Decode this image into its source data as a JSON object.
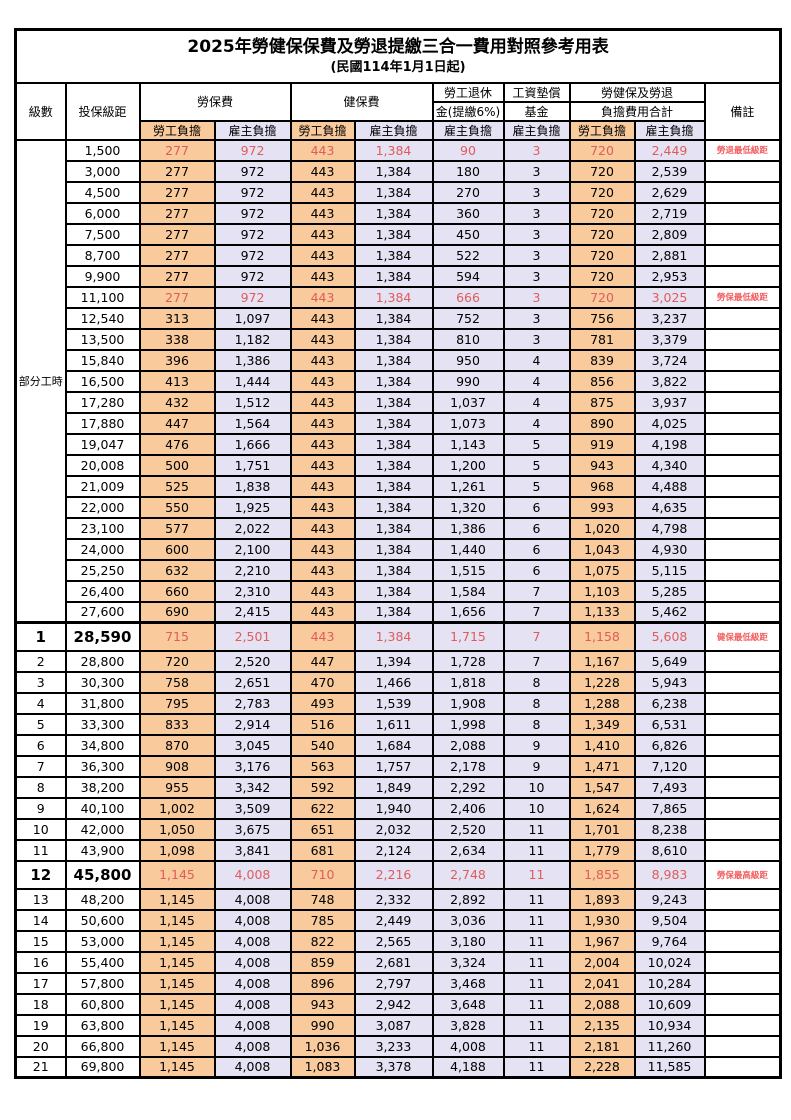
{
  "title": "2025年勞健保保費及勞退提繳三合一費用對照參考用表",
  "subtitle": "(民國114年1月1日起)",
  "colors": {
    "employee_bg": "#F8CA9C",
    "employer_bg": "#E4E2F3",
    "highlight_red": "#E05C5C",
    "note_red": "#F25F5F"
  },
  "header": {
    "level": "級數",
    "bracket": "投保級距",
    "labor_fee": "勞保費",
    "health_fee": "健保費",
    "pension_line1": "勞工退休",
    "pension_line2": "金(提繳6%)",
    "fund_line1": "工資墊償",
    "fund_line2": "基金",
    "total_line1": "勞健保及勞退",
    "total_line2": "負擔費用合計",
    "employee": "勞工負擔",
    "employer": "雇主負擔",
    "note": "備註"
  },
  "part_time_label": "部分工時",
  "rows": [
    {
      "bracket": "1,500",
      "li_emp": "277",
      "li_er": "972",
      "hi_emp": "443",
      "hi_er": "1,384",
      "pension": "90",
      "fund": "3",
      "tot_emp": "720",
      "tot_er": "2,449",
      "note": "勞退最低級距",
      "red": true
    },
    {
      "bracket": "3,000",
      "li_emp": "277",
      "li_er": "972",
      "hi_emp": "443",
      "hi_er": "1,384",
      "pension": "180",
      "fund": "3",
      "tot_emp": "720",
      "tot_er": "2,539"
    },
    {
      "bracket": "4,500",
      "li_emp": "277",
      "li_er": "972",
      "hi_emp": "443",
      "hi_er": "1,384",
      "pension": "270",
      "fund": "3",
      "tot_emp": "720",
      "tot_er": "2,629"
    },
    {
      "bracket": "6,000",
      "li_emp": "277",
      "li_er": "972",
      "hi_emp": "443",
      "hi_er": "1,384",
      "pension": "360",
      "fund": "3",
      "tot_emp": "720",
      "tot_er": "2,719"
    },
    {
      "bracket": "7,500",
      "li_emp": "277",
      "li_er": "972",
      "hi_emp": "443",
      "hi_er": "1,384",
      "pension": "450",
      "fund": "3",
      "tot_emp": "720",
      "tot_er": "2,809"
    },
    {
      "bracket": "8,700",
      "li_emp": "277",
      "li_er": "972",
      "hi_emp": "443",
      "hi_er": "1,384",
      "pension": "522",
      "fund": "3",
      "tot_emp": "720",
      "tot_er": "2,881"
    },
    {
      "bracket": "9,900",
      "li_emp": "277",
      "li_er": "972",
      "hi_emp": "443",
      "hi_er": "1,384",
      "pension": "594",
      "fund": "3",
      "tot_emp": "720",
      "tot_er": "2,953"
    },
    {
      "bracket": "11,100",
      "li_emp": "277",
      "li_er": "972",
      "hi_emp": "443",
      "hi_er": "1,384",
      "pension": "666",
      "fund": "3",
      "tot_emp": "720",
      "tot_er": "3,025",
      "note": "勞保最低級距",
      "red": true
    },
    {
      "bracket": "12,540",
      "li_emp": "313",
      "li_er": "1,097",
      "hi_emp": "443",
      "hi_er": "1,384",
      "pension": "752",
      "fund": "3",
      "tot_emp": "756",
      "tot_er": "3,237"
    },
    {
      "bracket": "13,500",
      "li_emp": "338",
      "li_er": "1,182",
      "hi_emp": "443",
      "hi_er": "1,384",
      "pension": "810",
      "fund": "3",
      "tot_emp": "781",
      "tot_er": "3,379"
    },
    {
      "bracket": "15,840",
      "li_emp": "396",
      "li_er": "1,386",
      "hi_emp": "443",
      "hi_er": "1,384",
      "pension": "950",
      "fund": "4",
      "tot_emp": "839",
      "tot_er": "3,724"
    },
    {
      "bracket": "16,500",
      "li_emp": "413",
      "li_er": "1,444",
      "hi_emp": "443",
      "hi_er": "1,384",
      "pension": "990",
      "fund": "4",
      "tot_emp": "856",
      "tot_er": "3,822"
    },
    {
      "bracket": "17,280",
      "li_emp": "432",
      "li_er": "1,512",
      "hi_emp": "443",
      "hi_er": "1,384",
      "pension": "1,037",
      "fund": "4",
      "tot_emp": "875",
      "tot_er": "3,937"
    },
    {
      "bracket": "17,880",
      "li_emp": "447",
      "li_er": "1,564",
      "hi_emp": "443",
      "hi_er": "1,384",
      "pension": "1,073",
      "fund": "4",
      "tot_emp": "890",
      "tot_er": "4,025"
    },
    {
      "bracket": "19,047",
      "li_emp": "476",
      "li_er": "1,666",
      "hi_emp": "443",
      "hi_er": "1,384",
      "pension": "1,143",
      "fund": "5",
      "tot_emp": "919",
      "tot_er": "4,198"
    },
    {
      "bracket": "20,008",
      "li_emp": "500",
      "li_er": "1,751",
      "hi_emp": "443",
      "hi_er": "1,384",
      "pension": "1,200",
      "fund": "5",
      "tot_emp": "943",
      "tot_er": "4,340"
    },
    {
      "bracket": "21,009",
      "li_emp": "525",
      "li_er": "1,838",
      "hi_emp": "443",
      "hi_er": "1,384",
      "pension": "1,261",
      "fund": "5",
      "tot_emp": "968",
      "tot_er": "4,488"
    },
    {
      "bracket": "22,000",
      "li_emp": "550",
      "li_er": "1,925",
      "hi_emp": "443",
      "hi_er": "1,384",
      "pension": "1,320",
      "fund": "6",
      "tot_emp": "993",
      "tot_er": "4,635"
    },
    {
      "bracket": "23,100",
      "li_emp": "577",
      "li_er": "2,022",
      "hi_emp": "443",
      "hi_er": "1,384",
      "pension": "1,386",
      "fund": "6",
      "tot_emp": "1,020",
      "tot_er": "4,798"
    },
    {
      "bracket": "24,000",
      "li_emp": "600",
      "li_er": "2,100",
      "hi_emp": "443",
      "hi_er": "1,384",
      "pension": "1,440",
      "fund": "6",
      "tot_emp": "1,043",
      "tot_er": "4,930"
    },
    {
      "bracket": "25,250",
      "li_emp": "632",
      "li_er": "2,210",
      "hi_emp": "443",
      "hi_er": "1,384",
      "pension": "1,515",
      "fund": "6",
      "tot_emp": "1,075",
      "tot_er": "5,115"
    },
    {
      "bracket": "26,400",
      "li_emp": "660",
      "li_er": "2,310",
      "hi_emp": "443",
      "hi_er": "1,384",
      "pension": "1,584",
      "fund": "7",
      "tot_emp": "1,103",
      "tot_er": "5,285"
    },
    {
      "bracket": "27,600",
      "li_emp": "690",
      "li_er": "2,415",
      "hi_emp": "443",
      "hi_er": "1,384",
      "pension": "1,656",
      "fund": "7",
      "tot_emp": "1,133",
      "tot_er": "5,462"
    },
    {
      "level": "1",
      "bracket": "28,590",
      "li_emp": "715",
      "li_er": "2,501",
      "hi_emp": "443",
      "hi_er": "1,384",
      "pension": "1,715",
      "fund": "7",
      "tot_emp": "1,158",
      "tot_er": "5,608",
      "note": "健保最低級距",
      "red": true,
      "bold": true,
      "section_top": true
    },
    {
      "level": "2",
      "bracket": "28,800",
      "li_emp": "720",
      "li_er": "2,520",
      "hi_emp": "447",
      "hi_er": "1,394",
      "pension": "1,728",
      "fund": "7",
      "tot_emp": "1,167",
      "tot_er": "5,649"
    },
    {
      "level": "3",
      "bracket": "30,300",
      "li_emp": "758",
      "li_er": "2,651",
      "hi_emp": "470",
      "hi_er": "1,466",
      "pension": "1,818",
      "fund": "8",
      "tot_emp": "1,228",
      "tot_er": "5,943"
    },
    {
      "level": "4",
      "bracket": "31,800",
      "li_emp": "795",
      "li_er": "2,783",
      "hi_emp": "493",
      "hi_er": "1,539",
      "pension": "1,908",
      "fund": "8",
      "tot_emp": "1,288",
      "tot_er": "6,238"
    },
    {
      "level": "5",
      "bracket": "33,300",
      "li_emp": "833",
      "li_er": "2,914",
      "hi_emp": "516",
      "hi_er": "1,611",
      "pension": "1,998",
      "fund": "8",
      "tot_emp": "1,349",
      "tot_er": "6,531"
    },
    {
      "level": "6",
      "bracket": "34,800",
      "li_emp": "870",
      "li_er": "3,045",
      "hi_emp": "540",
      "hi_er": "1,684",
      "pension": "2,088",
      "fund": "9",
      "tot_emp": "1,410",
      "tot_er": "6,826"
    },
    {
      "level": "7",
      "bracket": "36,300",
      "li_emp": "908",
      "li_er": "3,176",
      "hi_emp": "563",
      "hi_er": "1,757",
      "pension": "2,178",
      "fund": "9",
      "tot_emp": "1,471",
      "tot_er": "7,120"
    },
    {
      "level": "8",
      "bracket": "38,200",
      "li_emp": "955",
      "li_er": "3,342",
      "hi_emp": "592",
      "hi_er": "1,849",
      "pension": "2,292",
      "fund": "10",
      "tot_emp": "1,547",
      "tot_er": "7,493"
    },
    {
      "level": "9",
      "bracket": "40,100",
      "li_emp": "1,002",
      "li_er": "3,509",
      "hi_emp": "622",
      "hi_er": "1,940",
      "pension": "2,406",
      "fund": "10",
      "tot_emp": "1,624",
      "tot_er": "7,865"
    },
    {
      "level": "10",
      "bracket": "42,000",
      "li_emp": "1,050",
      "li_er": "3,675",
      "hi_emp": "651",
      "hi_er": "2,032",
      "pension": "2,520",
      "fund": "11",
      "tot_emp": "1,701",
      "tot_er": "8,238"
    },
    {
      "level": "11",
      "bracket": "43,900",
      "li_emp": "1,098",
      "li_er": "3,841",
      "hi_emp": "681",
      "hi_er": "2,124",
      "pension": "2,634",
      "fund": "11",
      "tot_emp": "1,779",
      "tot_er": "8,610"
    },
    {
      "level": "12",
      "bracket": "45,800",
      "li_emp": "1,145",
      "li_er": "4,008",
      "hi_emp": "710",
      "hi_er": "2,216",
      "pension": "2,748",
      "fund": "11",
      "tot_emp": "1,855",
      "tot_er": "8,983",
      "note": "勞保最高級距",
      "red": true,
      "bold": true
    },
    {
      "level": "13",
      "bracket": "48,200",
      "li_emp": "1,145",
      "li_er": "4,008",
      "hi_emp": "748",
      "hi_er": "2,332",
      "pension": "2,892",
      "fund": "11",
      "tot_emp": "1,893",
      "tot_er": "9,243"
    },
    {
      "level": "14",
      "bracket": "50,600",
      "li_emp": "1,145",
      "li_er": "4,008",
      "hi_emp": "785",
      "hi_er": "2,449",
      "pension": "3,036",
      "fund": "11",
      "tot_emp": "1,930",
      "tot_er": "9,504"
    },
    {
      "level": "15",
      "bracket": "53,000",
      "li_emp": "1,145",
      "li_er": "4,008",
      "hi_emp": "822",
      "hi_er": "2,565",
      "pension": "3,180",
      "fund": "11",
      "tot_emp": "1,967",
      "tot_er": "9,764"
    },
    {
      "level": "16",
      "bracket": "55,400",
      "li_emp": "1,145",
      "li_er": "4,008",
      "hi_emp": "859",
      "hi_er": "2,681",
      "pension": "3,324",
      "fund": "11",
      "tot_emp": "2,004",
      "tot_er": "10,024"
    },
    {
      "level": "17",
      "bracket": "57,800",
      "li_emp": "1,145",
      "li_er": "4,008",
      "hi_emp": "896",
      "hi_er": "2,797",
      "pension": "3,468",
      "fund": "11",
      "tot_emp": "2,041",
      "tot_er": "10,284"
    },
    {
      "level": "18",
      "bracket": "60,800",
      "li_emp": "1,145",
      "li_er": "4,008",
      "hi_emp": "943",
      "hi_er": "2,942",
      "pension": "3,648",
      "fund": "11",
      "tot_emp": "2,088",
      "tot_er": "10,609"
    },
    {
      "level": "19",
      "bracket": "63,800",
      "li_emp": "1,145",
      "li_er": "4,008",
      "hi_emp": "990",
      "hi_er": "3,087",
      "pension": "3,828",
      "fund": "11",
      "tot_emp": "2,135",
      "tot_er": "10,934"
    },
    {
      "level": "20",
      "bracket": "66,800",
      "li_emp": "1,145",
      "li_er": "4,008",
      "hi_emp": "1,036",
      "hi_er": "3,233",
      "pension": "4,008",
      "fund": "11",
      "tot_emp": "2,181",
      "tot_er": "11,260"
    },
    {
      "level": "21",
      "bracket": "69,800",
      "li_emp": "1,145",
      "li_er": "4,008",
      "hi_emp": "1,083",
      "hi_er": "3,378",
      "pension": "4,188",
      "fund": "11",
      "tot_emp": "2,228",
      "tot_er": "11,585"
    }
  ]
}
